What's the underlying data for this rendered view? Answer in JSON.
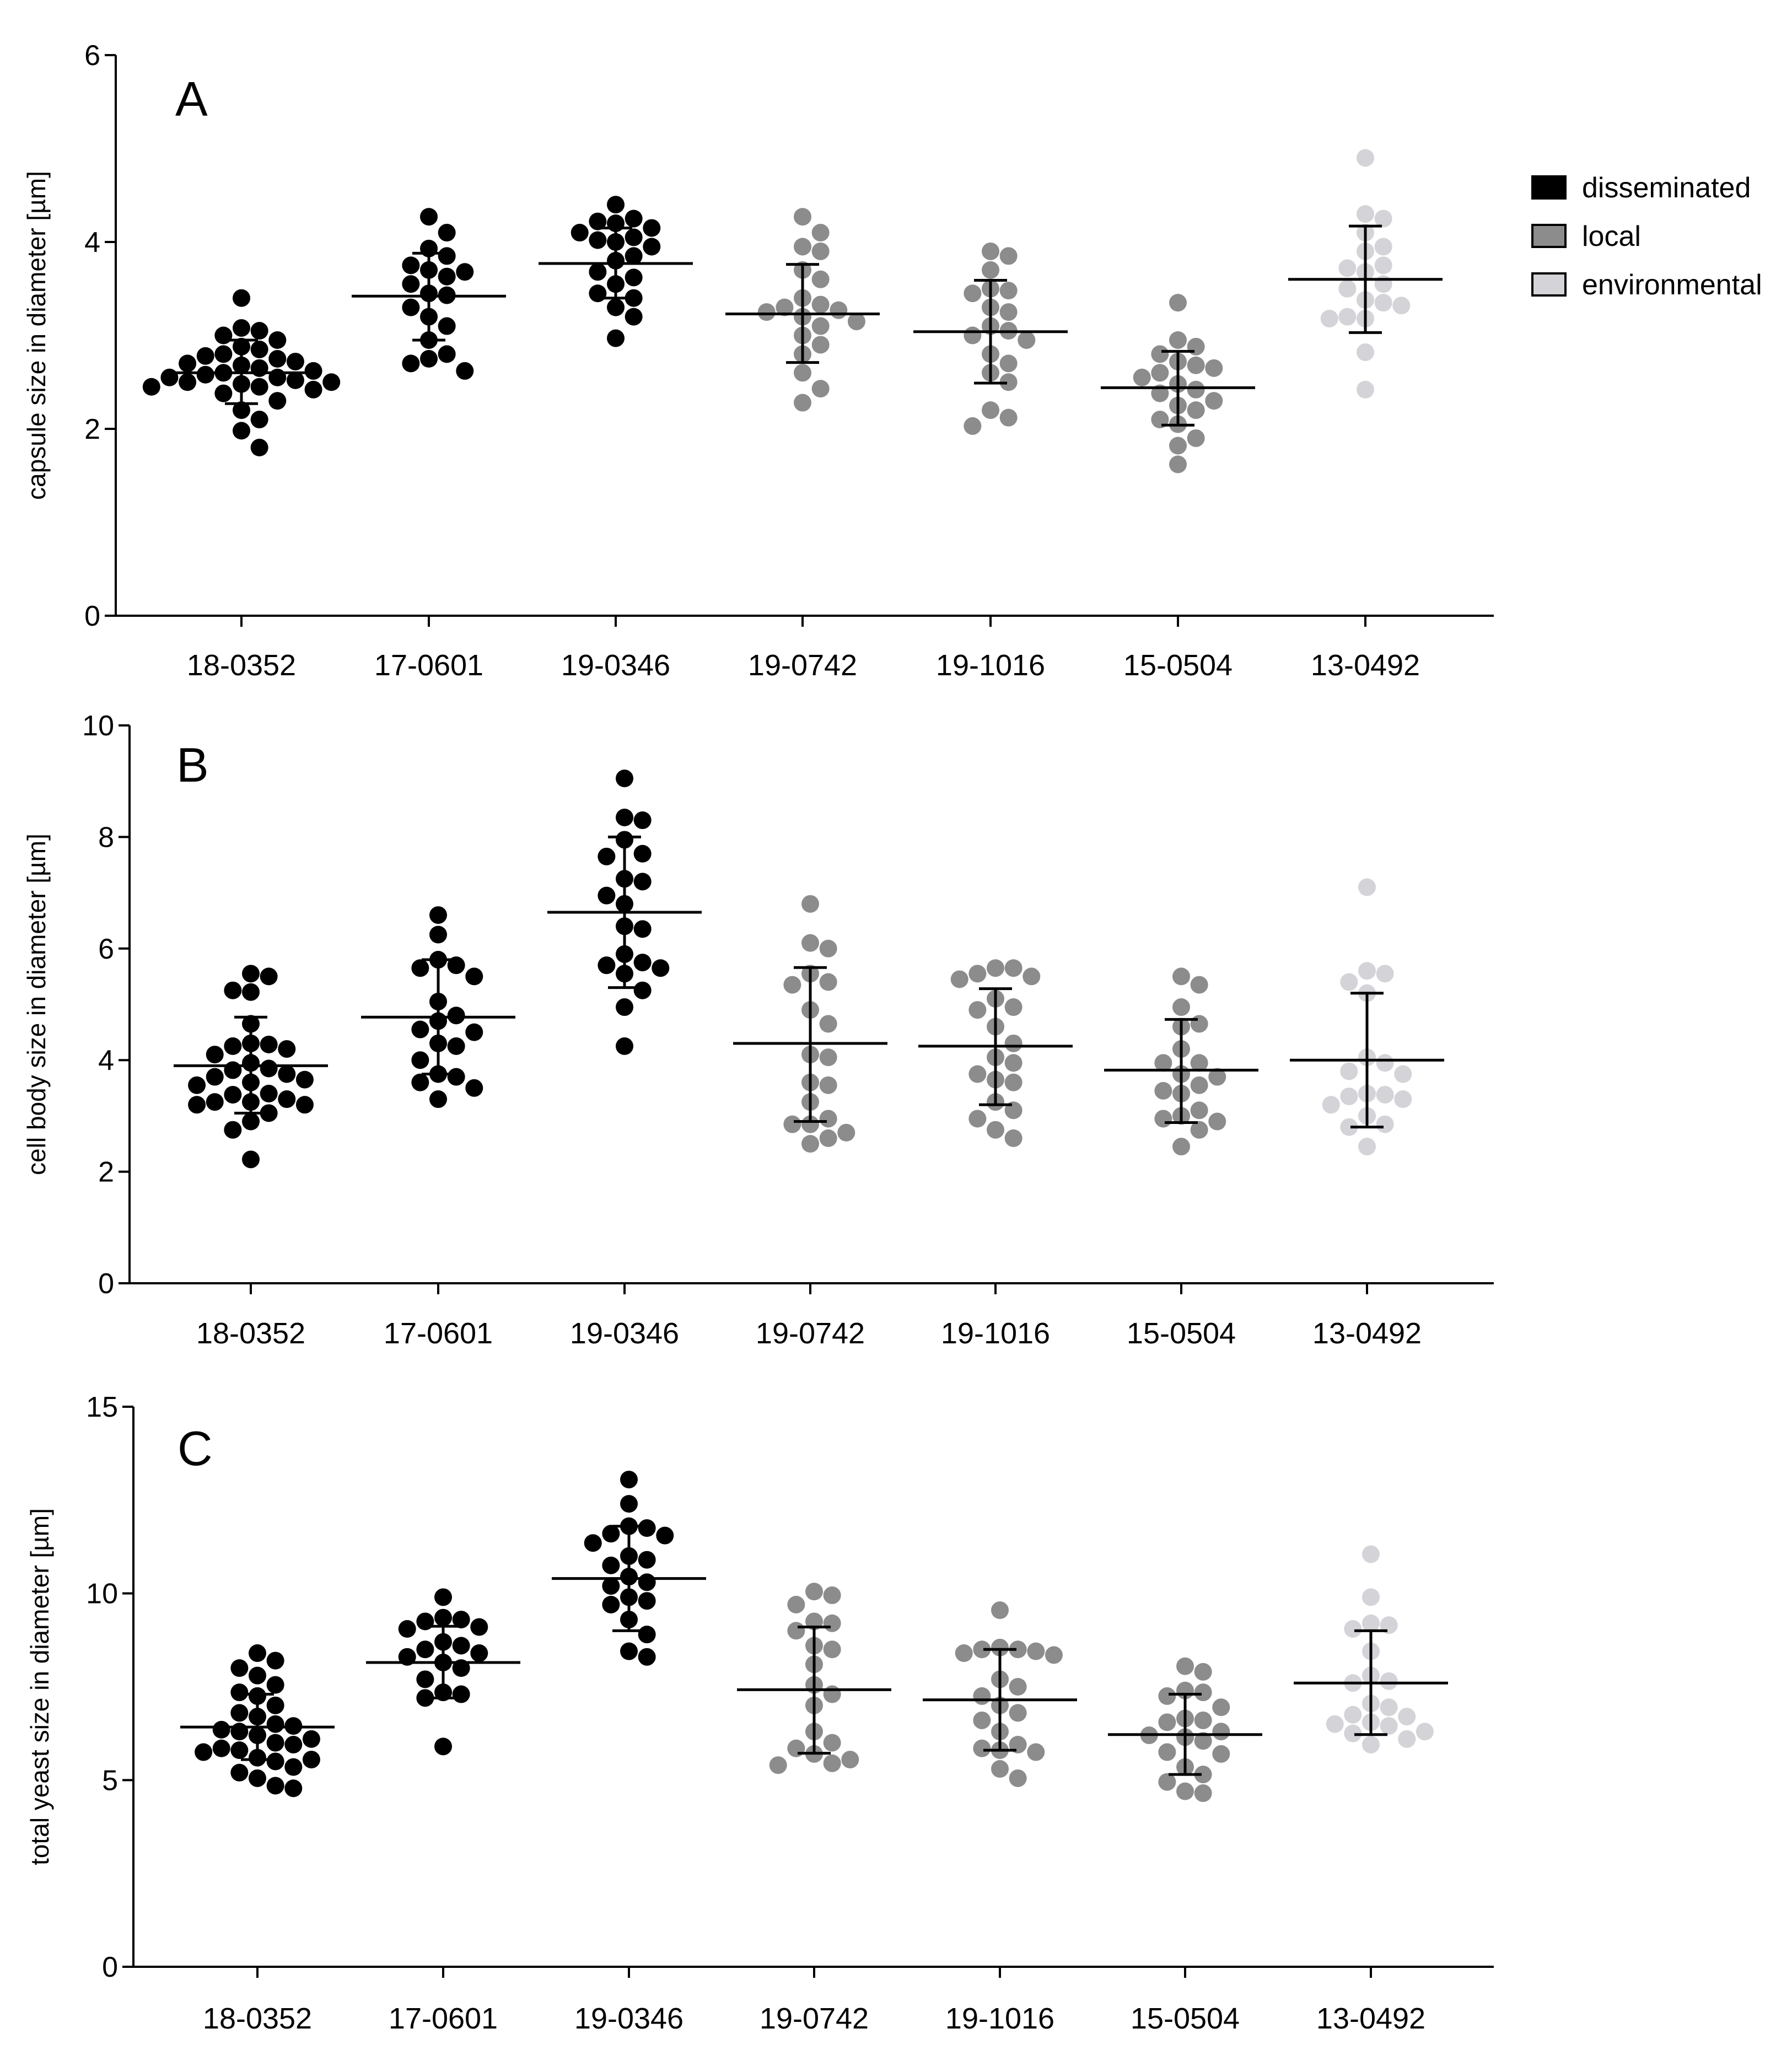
{
  "legend": {
    "items": [
      {
        "label": "disseminated",
        "color": "#000000"
      },
      {
        "label": "local",
        "color": "#8c8c8c"
      },
      {
        "label": "environmental",
        "color": "#d3d3d8"
      }
    ],
    "placement": "right"
  },
  "chart_data": [
    {
      "type": "scatter",
      "panel": "A",
      "ylabel": "capsule size in diameter [µm]",
      "ylim": [
        0,
        6
      ],
      "yticks": [
        0,
        2,
        4,
        6
      ],
      "categories": [
        "18-0352",
        "17-0601",
        "19-0346",
        "19-0742",
        "19-1016",
        "15-0504",
        "13-0492"
      ],
      "groups": [
        "disseminated",
        "disseminated",
        "disseminated",
        "local",
        "local",
        "local",
        "environmental"
      ],
      "mean": [
        2.6,
        3.42,
        3.77,
        3.23,
        3.04,
        2.44,
        3.6
      ],
      "sd_upper": [
        2.95,
        3.88,
        4.15,
        3.76,
        3.59,
        2.83,
        4.17
      ],
      "sd_lower": [
        2.27,
        2.95,
        3.4,
        2.71,
        2.49,
        2.04,
        3.03
      ],
      "points": [
        [
          3.4,
          3.08,
          3.05,
          3.0,
          2.95,
          2.88,
          2.85,
          2.8,
          2.78,
          2.75,
          2.72,
          2.7,
          2.68,
          2.65,
          2.62,
          2.6,
          2.58,
          2.55,
          2.55,
          2.52,
          2.5,
          2.5,
          2.48,
          2.45,
          2.45,
          2.42,
          2.38,
          2.3,
          2.2,
          2.1,
          1.98,
          1.8
        ],
        [
          4.27,
          4.1,
          3.93,
          3.85,
          3.75,
          3.7,
          3.68,
          3.63,
          3.55,
          3.45,
          3.43,
          3.3,
          3.2,
          3.1,
          2.95,
          2.8,
          2.75,
          2.7,
          2.62
        ],
        [
          4.4,
          4.25,
          4.22,
          4.2,
          4.15,
          4.1,
          4.05,
          4.02,
          4.0,
          3.95,
          3.85,
          3.8,
          3.68,
          3.62,
          3.55,
          3.45,
          3.4,
          3.3,
          3.2,
          2.97
        ],
        [
          4.27,
          4.1,
          3.95,
          3.9,
          3.7,
          3.6,
          3.4,
          3.33,
          3.3,
          3.27,
          3.25,
          3.2,
          3.15,
          3.1,
          3.0,
          2.9,
          2.8,
          2.6,
          2.43,
          2.28
        ],
        [
          3.9,
          3.85,
          3.7,
          3.5,
          3.48,
          3.45,
          3.3,
          3.25,
          3.1,
          3.05,
          3.0,
          2.95,
          2.8,
          2.7,
          2.6,
          2.5,
          2.2,
          2.12,
          2.03
        ],
        [
          3.35,
          2.95,
          2.88,
          2.8,
          2.72,
          2.68,
          2.65,
          2.6,
          2.55,
          2.48,
          2.42,
          2.38,
          2.3,
          2.25,
          2.2,
          2.1,
          2.05,
          1.9,
          1.82,
          1.62
        ],
        [
          4.9,
          4.3,
          4.25,
          4.1,
          3.95,
          3.9,
          3.75,
          3.72,
          3.68,
          3.55,
          3.5,
          3.38,
          3.35,
          3.32,
          3.2,
          3.18,
          3.18,
          2.82,
          2.42
        ]
      ]
    },
    {
      "type": "scatter",
      "panel": "B",
      "ylabel": "cell body size in diameter [µm]",
      "ylim": [
        0,
        10
      ],
      "yticks": [
        0,
        2,
        4,
        6,
        8,
        10
      ],
      "categories": [
        "18-0352",
        "17-0601",
        "19-0346",
        "19-0742",
        "19-1016",
        "15-0504",
        "13-0492"
      ],
      "groups": [
        "disseminated",
        "disseminated",
        "disseminated",
        "local",
        "local",
        "local",
        "environmental"
      ],
      "mean": [
        3.9,
        4.77,
        6.65,
        4.3,
        4.25,
        3.82,
        4.0
      ],
      "sd_upper": [
        4.77,
        5.8,
        8.0,
        5.66,
        5.28,
        4.73,
        5.2
      ],
      "sd_lower": [
        3.05,
        3.75,
        5.3,
        2.9,
        3.2,
        2.88,
        2.8
      ],
      "points": [
        [
          5.55,
          5.5,
          5.25,
          5.22,
          4.65,
          4.3,
          4.28,
          4.25,
          4.2,
          4.1,
          3.95,
          3.85,
          3.82,
          3.75,
          3.7,
          3.65,
          3.6,
          3.55,
          3.4,
          3.38,
          3.3,
          3.25,
          3.25,
          3.2,
          3.2,
          3.05,
          2.9,
          2.75,
          2.22
        ],
        [
          6.6,
          6.25,
          5.8,
          5.7,
          5.65,
          5.5,
          5.05,
          4.8,
          4.7,
          4.55,
          4.5,
          4.3,
          4.25,
          4.0,
          3.75,
          3.7,
          3.6,
          3.5,
          3.3
        ],
        [
          9.05,
          8.35,
          8.3,
          7.95,
          7.7,
          7.65,
          7.25,
          7.2,
          6.95,
          6.8,
          6.4,
          6.35,
          5.9,
          5.75,
          5.7,
          5.65,
          5.55,
          5.25,
          4.95,
          4.25
        ],
        [
          6.8,
          6.1,
          6.0,
          5.55,
          5.4,
          5.35,
          4.9,
          4.65,
          4.1,
          4.05,
          3.6,
          3.55,
          3.25,
          2.95,
          2.85,
          2.85,
          2.7,
          2.6,
          2.5
        ],
        [
          5.65,
          5.65,
          5.55,
          5.5,
          5.45,
          5.1,
          4.95,
          4.9,
          4.6,
          4.3,
          4.05,
          3.95,
          3.75,
          3.65,
          3.6,
          3.25,
          3.1,
          2.95,
          2.75,
          2.6
        ],
        [
          5.5,
          5.35,
          4.95,
          4.65,
          4.6,
          4.2,
          3.95,
          3.95,
          3.75,
          3.7,
          3.55,
          3.45,
          3.4,
          3.1,
          3.0,
          2.95,
          2.9,
          2.75,
          2.45
        ],
        [
          7.1,
          5.6,
          5.55,
          5.4,
          5.2,
          4.05,
          3.95,
          3.8,
          3.75,
          3.4,
          3.38,
          3.35,
          3.3,
          3.2,
          3.0,
          2.85,
          2.8,
          2.45
        ]
      ]
    },
    {
      "type": "scatter",
      "panel": "C",
      "ylabel": "total yeast size in diameter [µm]",
      "ylim": [
        0,
        15
      ],
      "yticks": [
        0,
        5,
        10,
        15
      ],
      "categories": [
        "18-0352",
        "17-0601",
        "19-0346",
        "19-0742",
        "19-1016",
        "15-0504",
        "13-0492"
      ],
      "groups": [
        "disseminated",
        "disseminated",
        "disseminated",
        "local",
        "local",
        "local",
        "environmental"
      ],
      "mean": [
        6.42,
        8.15,
        10.4,
        7.42,
        7.15,
        6.22,
        7.6
      ],
      "sd_upper": [
        7.3,
        9.12,
        11.8,
        9.1,
        8.5,
        7.3,
        9.0
      ],
      "sd_lower": [
        5.55,
        7.2,
        9.0,
        5.72,
        5.8,
        5.15,
        6.22
      ],
      "points": [
        [
          8.4,
          8.2,
          8.0,
          7.8,
          7.55,
          7.35,
          7.25,
          7.0,
          6.8,
          6.7,
          6.5,
          6.45,
          6.35,
          6.3,
          6.2,
          6.1,
          6.0,
          5.95,
          5.85,
          5.8,
          5.75,
          5.6,
          5.55,
          5.5,
          5.35,
          5.2,
          5.05,
          4.85,
          4.78
        ],
        [
          9.9,
          9.35,
          9.3,
          9.25,
          9.1,
          9.05,
          8.7,
          8.6,
          8.5,
          8.4,
          8.3,
          8.15,
          8.0,
          7.7,
          7.35,
          7.3,
          7.2,
          5.9
        ],
        [
          13.05,
          12.4,
          11.8,
          11.75,
          11.6,
          11.55,
          11.35,
          11.0,
          10.9,
          10.75,
          10.45,
          10.3,
          10.2,
          9.9,
          9.8,
          9.7,
          9.3,
          8.9,
          8.45,
          8.3
        ],
        [
          10.05,
          9.95,
          9.7,
          9.25,
          9.2,
          9.0,
          8.6,
          8.5,
          8.1,
          7.55,
          7.3,
          7.0,
          6.3,
          6.0,
          5.85,
          5.7,
          5.55,
          5.45,
          5.4
        ],
        [
          9.55,
          8.55,
          8.5,
          8.5,
          8.45,
          8.4,
          8.35,
          7.7,
          7.5,
          7.25,
          7.0,
          6.8,
          6.6,
          6.3,
          5.95,
          5.85,
          5.8,
          5.75,
          5.3,
          5.05
        ],
        [
          8.05,
          7.9,
          7.4,
          7.35,
          7.25,
          6.95,
          6.65,
          6.6,
          6.55,
          6.3,
          6.2,
          6.15,
          6.05,
          5.75,
          5.7,
          5.35,
          5.15,
          4.95,
          4.7,
          4.65
        ],
        [
          11.05,
          9.9,
          9.2,
          9.15,
          9.05,
          8.45,
          7.8,
          7.65,
          7.6,
          7.05,
          6.95,
          6.75,
          6.7,
          6.55,
          6.5,
          6.45,
          6.3,
          6.25,
          6.1,
          5.95
        ]
      ]
    }
  ]
}
